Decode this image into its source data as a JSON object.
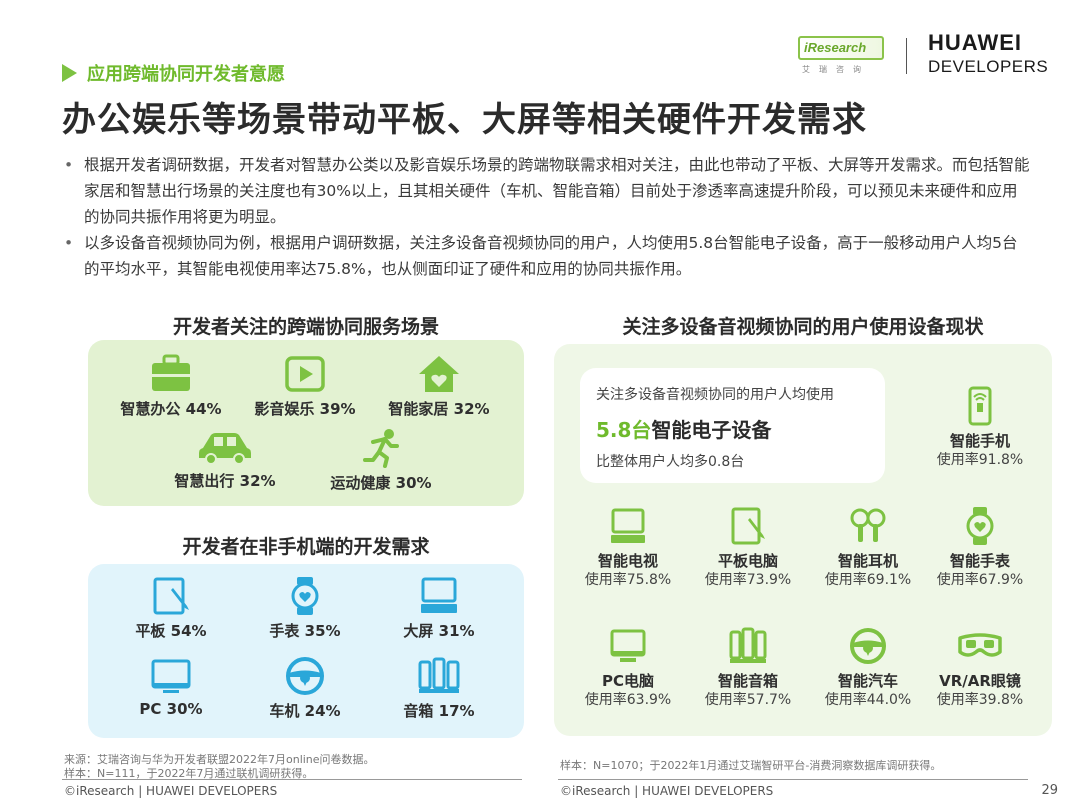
{
  "header": {
    "section_tag": "应用跨端协同开发者意愿",
    "title": "办公娱乐等场景带动平板、大屏等相关硬件开发需求",
    "logo_iresearch": "iResearch",
    "logo_iresearch_sub": "艾瑞咨询",
    "logo_huawei_line1": "HUAWEI",
    "logo_huawei_line2": "DEVELOPERS"
  },
  "bullets": [
    "根据开发者调研数据，开发者对智慧办公类以及影音娱乐场景的跨端物联需求相对关注，由此也带动了平板、大屏等开发需求。而包括智能家居和智慧出行场景的关注度也有30%以上，且其相关硬件（车机、智能音箱）目前处于渗透率高速提升阶段，可以预见未来硬件和应用的协同共振作用将更为明显。",
    "以多设备音视频协同为例，根据用户调研数据，关注多设备音视频协同的用户，人均使用5.8台智能电子设备，高于一般移动用户人均5台的平均水平，其智能电视使用率达75.8%，也从侧面印证了硬件和应用的协同共振作用。"
  ],
  "scenes": {
    "title": "开发者关注的跨端协同服务场景",
    "items": [
      {
        "label": "智慧办公 44%",
        "icon": "briefcase-icon"
      },
      {
        "label": "影音娱乐 39%",
        "icon": "video-play-icon"
      },
      {
        "label": "智能家居 32%",
        "icon": "smart-home-icon"
      },
      {
        "label": "智慧出行 32%",
        "icon": "car-icon"
      },
      {
        "label": "运动健康 30%",
        "icon": "running-icon"
      }
    ]
  },
  "dev_needs": {
    "title": "开发者在非手机端的开发需求",
    "items": [
      {
        "label": "平板 54%",
        "icon": "tablet-icon"
      },
      {
        "label": "手表 35%",
        "icon": "watch-icon"
      },
      {
        "label": "大屏 31%",
        "icon": "large-screen-icon"
      },
      {
        "label": "PC 30%",
        "icon": "pc-icon"
      },
      {
        "label": "车机 24%",
        "icon": "steering-wheel-icon"
      },
      {
        "label": "音箱 17%",
        "icon": "speaker-icon"
      }
    ]
  },
  "devices": {
    "title": "关注多设备音视频协同的用户使用设备现状",
    "highlight": {
      "line1": "关注多设备音视频协同的用户人均使用",
      "number": "5.8台",
      "line2_rest": "智能电子设备",
      "line3": "比整体用户人均多0.8台"
    },
    "items": [
      {
        "name": "智能手机",
        "rate": "使用率91.8%",
        "icon": "smartphone-icon"
      },
      {
        "name": "智能电视",
        "rate": "使用率75.8%",
        "icon": "tv-icon"
      },
      {
        "name": "平板电脑",
        "rate": "使用率73.9%",
        "icon": "tablet-icon"
      },
      {
        "name": "智能耳机",
        "rate": "使用率69.1%",
        "icon": "earbuds-icon"
      },
      {
        "name": "智能手表",
        "rate": "使用率67.9%",
        "icon": "watch-icon"
      },
      {
        "name": "PC电脑",
        "rate": "使用率63.9%",
        "icon": "pc-icon"
      },
      {
        "name": "智能音箱",
        "rate": "使用率57.7%",
        "icon": "speaker-icon"
      },
      {
        "name": "智能汽车",
        "rate": "使用率44.0%",
        "icon": "steering-wheel-icon"
      },
      {
        "name": "VR/AR眼镜",
        "rate": "使用率39.8%",
        "icon": "vr-glasses-icon"
      }
    ]
  },
  "footnotes": {
    "left_source": "来源：艾瑞咨询与华为开发者联盟2022年7月online问卷数据。",
    "left_sample": "样本：N=111，于2022年7月通过联机调研获得。",
    "right_sample": "样本：N=1070；于2022年1月通过艾瑞智研平台-消费洞察数据库调研获得。"
  },
  "footer": {
    "left": "©iResearch | HUAWEI DEVELOPERS",
    "right": "©iResearch | HUAWEI DEVELOPERS",
    "page": "29"
  },
  "colors": {
    "accent_green": "#7dc242",
    "panel_green": "#e3f2d2",
    "panel_blue": "#e1f4fb",
    "icon_blue": "#2aa7d9"
  }
}
